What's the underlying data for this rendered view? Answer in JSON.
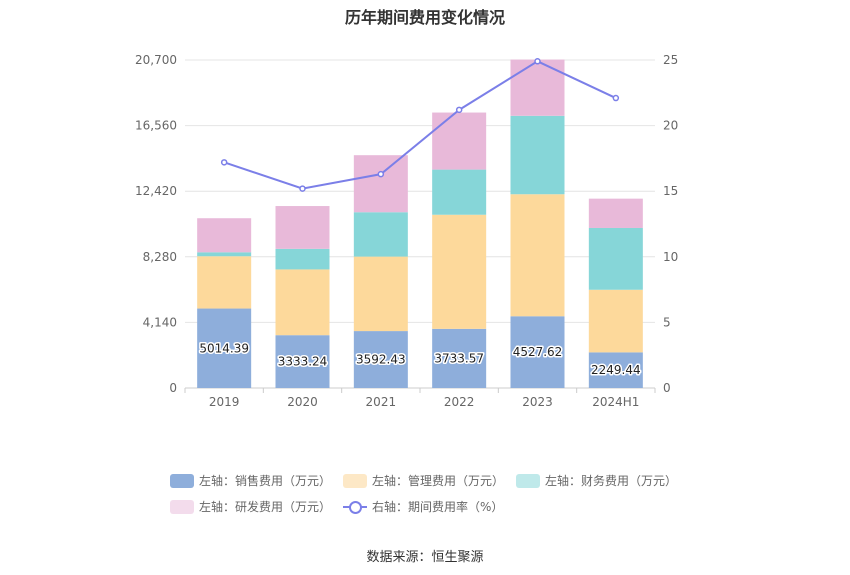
{
  "chart_data": {
    "type": "bar",
    "stacked": true,
    "title": "历年期间费用变化情况",
    "categories": [
      "2019",
      "2020",
      "2021",
      "2022",
      "2023",
      "2024H1"
    ],
    "left_axis": {
      "min": 0,
      "max": 20700,
      "ticks": [
        "0",
        "4,140",
        "8,280",
        "12,420",
        "16,560",
        "20,700"
      ]
    },
    "right_axis": {
      "min": 0,
      "max": 25,
      "ticks": [
        "0",
        "5",
        "10",
        "15",
        "20",
        "25"
      ]
    },
    "series": [
      {
        "name": "左轴：销售费用（万元）",
        "axis": "left",
        "color": "#8eaedb",
        "values": [
          5014.39,
          3333.24,
          3592.43,
          3733.57,
          4527.62,
          2249.44
        ],
        "labels": [
          "5014.39",
          "3333.24",
          "3592.43",
          "3733.57",
          "4527.62",
          "2249.44"
        ]
      },
      {
        "name": "左轴：管理费用（万元）",
        "axis": "left",
        "color": "#fdd99b",
        "values": [
          3300,
          4150,
          4700,
          7200,
          7700,
          3950
        ]
      },
      {
        "name": "左轴：财务费用（万元）",
        "axis": "left",
        "color": "#86d6d8",
        "values": [
          250,
          1300,
          2800,
          2850,
          4950,
          3900
        ]
      },
      {
        "name": "左轴：研发费用（万元）",
        "axis": "left",
        "color": "#e8b9d9",
        "values": [
          2150,
          2700,
          3600,
          3600,
          3550,
          1850
        ]
      },
      {
        "name": "右轴：期间费用率（%）",
        "axis": "right",
        "type": "line",
        "color": "#7b7fe8",
        "values": [
          17.2,
          15.2,
          16.3,
          21.2,
          24.9,
          22.1
        ]
      }
    ],
    "legend_position": "bottom",
    "grid": true
  },
  "legend": {
    "items": [
      {
        "label": "左轴：销售费用（万元）",
        "color": "#8eaedb"
      },
      {
        "label": "左轴：管理费用（万元）",
        "color": "#fde8c6"
      },
      {
        "label": "左轴：财务费用（万元）",
        "color": "#bfe9ea"
      },
      {
        "label": "左轴：研发费用（万元）",
        "color": "#f3dcec"
      },
      {
        "label": "右轴：期间费用率（%）",
        "color": "#7b7fe8"
      }
    ]
  },
  "source": "数据来源：恒生聚源"
}
